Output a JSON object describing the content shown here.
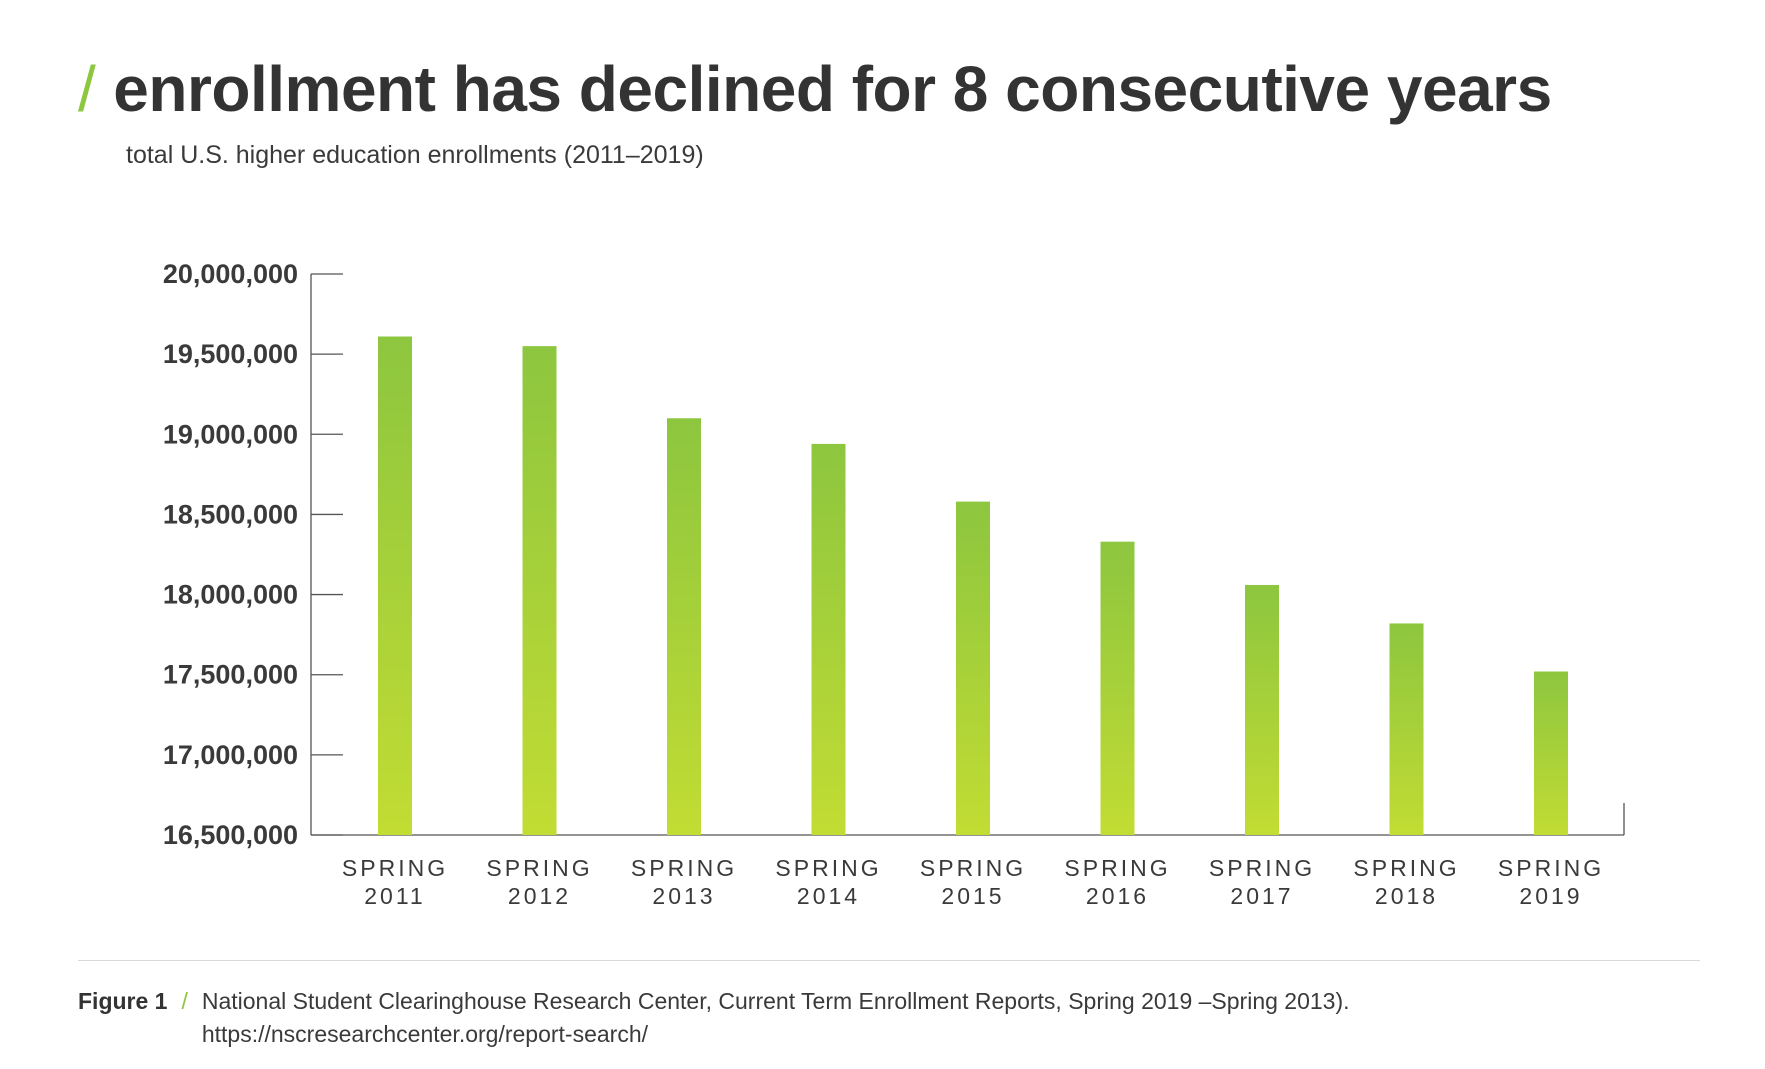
{
  "title": "enrollment has declined for 8 consecutive years",
  "title_prefix": "/",
  "subtitle": "total U.S. higher education enrollments (2011–2019)",
  "colors": {
    "accent": "#8dc63f",
    "bar_top": "#8dc63f",
    "bar_bottom": "#c2dc33",
    "axis": "#555555",
    "text": "#333333"
  },
  "chart_data": {
    "type": "bar",
    "categories": [
      "SPRING 2011",
      "SPRING 2012",
      "SPRING 2013",
      "SPRING 2014",
      "SPRING 2015",
      "SPRING 2016",
      "SPRING 2017",
      "SPRING 2018",
      "SPRING 2019"
    ],
    "category_lines": [
      [
        "SPRING",
        "2011"
      ],
      [
        "SPRING",
        "2012"
      ],
      [
        "SPRING",
        "2013"
      ],
      [
        "SPRING",
        "2014"
      ],
      [
        "SPRING",
        "2015"
      ],
      [
        "SPRING",
        "2016"
      ],
      [
        "SPRING",
        "2017"
      ],
      [
        "SPRING",
        "2018"
      ],
      [
        "SPRING",
        "2019"
      ]
    ],
    "values": [
      19610000,
      19550000,
      19100000,
      18940000,
      18580000,
      18330000,
      18060000,
      17820000,
      17520000
    ],
    "ylim": [
      16500000,
      20000000
    ],
    "yticks": [
      16500000,
      17000000,
      17500000,
      18000000,
      18500000,
      19000000,
      19500000,
      20000000
    ],
    "ytick_labels": [
      "16,500,000",
      "17,000,000",
      "17,500,000",
      "18,000,000",
      "18,500,000",
      "19,000,000",
      "19,500,000",
      "20,000,000"
    ],
    "xlabel": "",
    "ylabel": "",
    "grid": false
  },
  "caption": {
    "figure_label": "Figure 1",
    "separator": "/",
    "source_line1": "National Student Clearinghouse Research Center, Current Term Enrollment Reports, Spring 2019 –Spring 2013).",
    "source_line2": "https://nscresearchcenter.org/report-search/"
  }
}
